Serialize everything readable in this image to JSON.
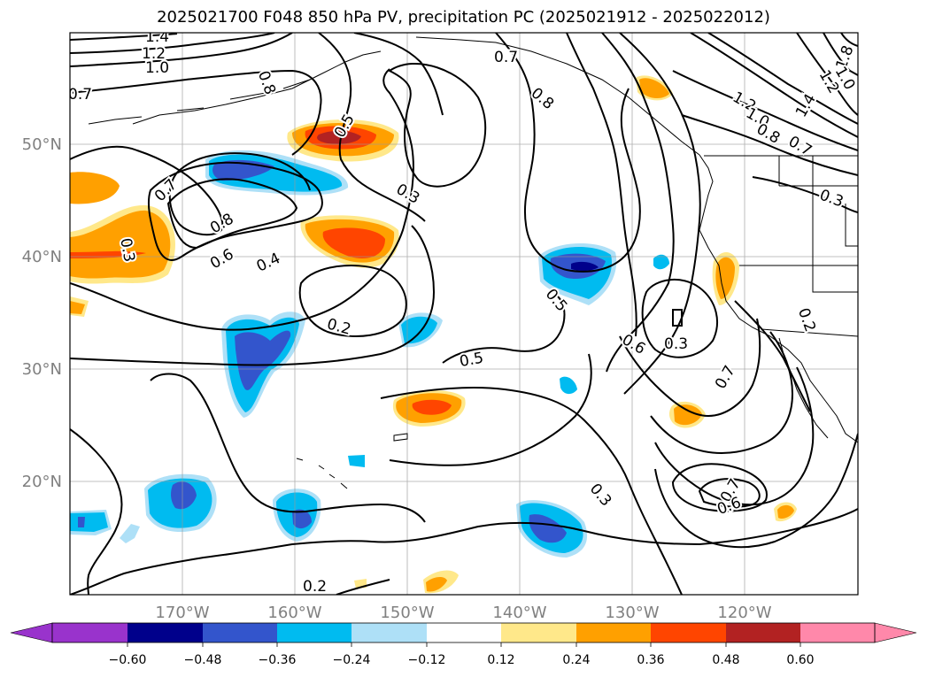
{
  "title": "2025021700 F048 850 hPa PV, precipitation PC (2025021912 - 2025022012)",
  "colors": {
    "neg_060": "#9933cc",
    "neg_048": "#00008b",
    "neg_036": "#3355cc",
    "neg_024": "#00bbf0",
    "neg_012": "#aee0f7",
    "zero": "#ffffff",
    "pos_012": "#ffe88a",
    "pos_024": "#ffa000",
    "pos_036": "#ff4500",
    "pos_048": "#b22222",
    "pos_060": "#ff88aa"
  },
  "map": {
    "projection": "PlateCarree",
    "lon_range": [
      "180°W",
      "110°W"
    ],
    "lat_range": [
      "10°N",
      "60°N"
    ],
    "lat_ticks": [
      "50°N",
      "40°N",
      "30°N",
      "20°N"
    ],
    "lon_ticks": [
      "170°W",
      "160°W",
      "150°W",
      "140°W",
      "130°W",
      "120°W"
    ],
    "contour_labels": [
      "1.4",
      "1.2",
      "1.0",
      "0.7",
      "0.8",
      "0.7",
      "0.8",
      "0.5",
      "0.3",
      "0.7",
      "0.8",
      "0.6",
      "0.4",
      "0.3",
      "0.2",
      "0.5",
      "0.5",
      "0.6",
      "0.3",
      "0.7",
      "0.3",
      "0.2",
      "0.7",
      "0.6",
      "0.2",
      "1.8",
      "1.2",
      "1.0",
      "1.4",
      "1.2",
      "1.0",
      "0.8",
      "0.7",
      "0.3"
    ]
  },
  "colorbar": {
    "ticks": [
      "−0.60",
      "−0.48",
      "−0.36",
      "−0.24",
      "−0.12",
      "0.12",
      "0.24",
      "0.36",
      "0.48",
      "0.60"
    ],
    "levels": [
      -0.6,
      -0.48,
      -0.36,
      -0.24,
      -0.12,
      0.12,
      0.24,
      0.36,
      0.48,
      0.6
    ]
  }
}
